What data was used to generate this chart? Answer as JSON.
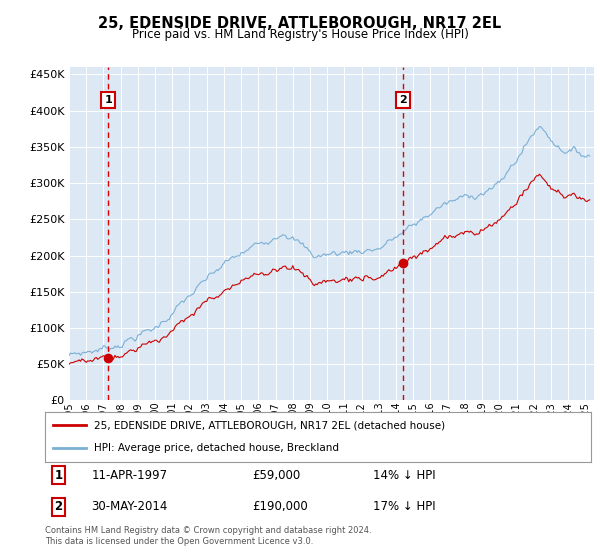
{
  "title": "25, EDENSIDE DRIVE, ATTLEBOROUGH, NR17 2EL",
  "subtitle": "Price paid vs. HM Land Registry's House Price Index (HPI)",
  "background_color": "#dce9f5",
  "plot_bg_color": "#dce9f5",
  "outer_bg_color": "#ffffff",
  "hpi_color": "#7bafd4",
  "price_color": "#cc0000",
  "ylim": [
    0,
    460000
  ],
  "yticks": [
    0,
    50000,
    100000,
    150000,
    200000,
    250000,
    300000,
    350000,
    400000,
    450000
  ],
  "xlim_start": 1995.0,
  "xlim_end": 2025.5,
  "purchase1_x": 1997.27,
  "purchase1_y": 59000,
  "purchase1_label": "1",
  "purchase1_date": "11-APR-1997",
  "purchase1_price": "£59,000",
  "purchase1_note": "14% ↓ HPI",
  "purchase2_x": 2014.41,
  "purchase2_y": 190000,
  "purchase2_label": "2",
  "purchase2_date": "30-MAY-2014",
  "purchase2_price": "£190,000",
  "purchase2_note": "17% ↓ HPI",
  "legend_line1": "25, EDENSIDE DRIVE, ATTLEBOROUGH, NR17 2EL (detached house)",
  "legend_line2": "HPI: Average price, detached house, Breckland",
  "footnote": "Contains HM Land Registry data © Crown copyright and database right 2024.\nThis data is licensed under the Open Government Licence v3.0.",
  "xtick_years": [
    1995,
    1996,
    1997,
    1998,
    1999,
    2000,
    2001,
    2002,
    2003,
    2004,
    2005,
    2006,
    2007,
    2008,
    2009,
    2010,
    2011,
    2012,
    2013,
    2014,
    2015,
    2016,
    2017,
    2018,
    2019,
    2020,
    2021,
    2022,
    2023,
    2024,
    2025
  ]
}
